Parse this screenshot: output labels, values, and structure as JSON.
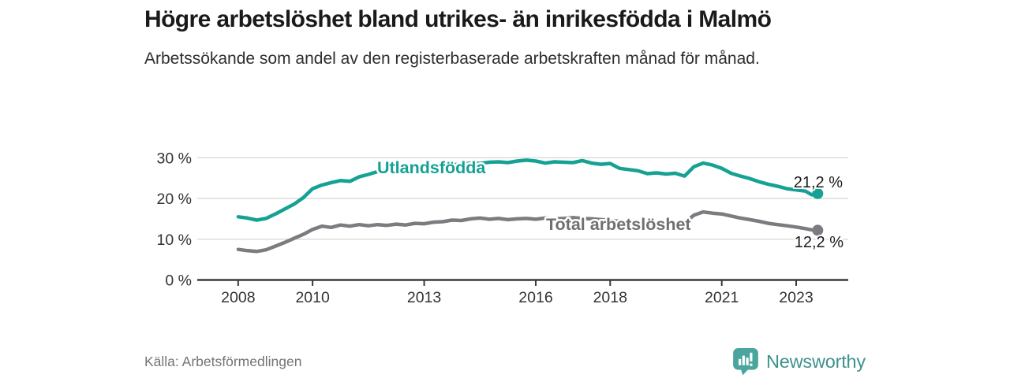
{
  "header": {
    "title": "Högre arbetslöshet bland utrikes- än inrikesfödda i Malmö",
    "subtitle": "Arbetssökande som andel av den registerbaserade arbetskraften månad för månad."
  },
  "footer": {
    "source": "Källa: Arbetsförmedlingen",
    "brand_name": "Newsworthy",
    "brand_icon": "newsworthy-speech-bubble-barchart-icon"
  },
  "colors": {
    "background": "#ffffff",
    "title_text": "#1a1a1a",
    "subtitle_text": "#2e2e2e",
    "grid": "#d9d9d9",
    "axis": "#3a3a3a",
    "axis_text": "#333333",
    "source_text": "#747474",
    "brand_teal_icon": "#4BA59E",
    "brand_teal_text": "#3E938C",
    "series_teal": "#15A193",
    "series_gray": "#7B7B80"
  },
  "chart_data": {
    "type": "line",
    "title": "Högre arbetslöshet bland utrikes- än inrikesfödda i Malmö",
    "subtitle": "Arbetssökande som andel av den registerbaserade arbetskraften månad för månad.",
    "xlabel": "",
    "ylabel": "%",
    "grid": true,
    "legend_position": "inline-labels-on-lines",
    "xlim": [
      2006.9,
      2024.4
    ],
    "ylim": [
      0,
      34.8
    ],
    "x": [
      2008.0,
      2008.25,
      2008.5,
      2008.75,
      2009.0,
      2009.25,
      2009.5,
      2009.75,
      2010.0,
      2010.25,
      2010.5,
      2010.75,
      2011.0,
      2011.25,
      2011.5,
      2011.75,
      2012.0,
      2012.25,
      2012.5,
      2012.75,
      2013.0,
      2013.25,
      2013.5,
      2013.75,
      2014.0,
      2014.25,
      2014.5,
      2014.75,
      2015.0,
      2015.25,
      2015.5,
      2015.75,
      2016.0,
      2016.25,
      2016.5,
      2016.75,
      2017.0,
      2017.25,
      2017.5,
      2017.75,
      2018.0,
      2018.25,
      2018.5,
      2018.75,
      2019.0,
      2019.25,
      2019.5,
      2019.75,
      2020.0,
      2020.25,
      2020.5,
      2020.75,
      2021.0,
      2021.25,
      2021.5,
      2021.75,
      2022.0,
      2022.25,
      2022.5,
      2022.75,
      2023.0,
      2023.25,
      2023.42,
      2023.58
    ],
    "series": [
      {
        "name": "Utlandsfödda",
        "color": "#15A193",
        "label_color": "#15A193",
        "end_label": "21,2 %",
        "end_value": 21.2,
        "values": [
          15.5,
          15.2,
          14.7,
          15.1,
          16.2,
          17.4,
          18.6,
          20.2,
          22.4,
          23.3,
          23.9,
          24.4,
          24.2,
          25.3,
          25.9,
          26.6,
          26.9,
          26.4,
          27.6,
          27.9,
          27.7,
          27.9,
          28.0,
          28.4,
          28.3,
          28.7,
          28.6,
          28.9,
          29.0,
          28.8,
          29.2,
          29.4,
          29.2,
          28.7,
          29.0,
          28.9,
          28.8,
          29.3,
          28.7,
          28.4,
          28.6,
          27.4,
          27.1,
          26.8,
          26.1,
          26.3,
          26.0,
          26.2,
          25.5,
          27.8,
          28.7,
          28.2,
          27.4,
          26.2,
          25.5,
          24.9,
          24.1,
          23.5,
          23.0,
          22.4,
          22.1,
          21.8,
          20.9,
          21.2
        ]
      },
      {
        "name": "Total arbetslöshet",
        "color": "#7B7B80",
        "label_color": "#6F6F74",
        "end_label": "12,2 %",
        "end_value": 12.2,
        "values": [
          7.5,
          7.2,
          7.0,
          7.4,
          8.3,
          9.2,
          10.2,
          11.2,
          12.4,
          13.2,
          12.9,
          13.5,
          13.2,
          13.6,
          13.3,
          13.6,
          13.4,
          13.7,
          13.5,
          13.9,
          13.8,
          14.2,
          14.3,
          14.7,
          14.6,
          15.0,
          15.2,
          14.9,
          15.1,
          14.8,
          15.0,
          15.1,
          14.9,
          15.2,
          15.0,
          15.1,
          15.3,
          15.1,
          15.0,
          14.8,
          14.6,
          14.4,
          14.3,
          14.1,
          13.9,
          13.9,
          13.8,
          13.9,
          14.1,
          15.9,
          16.7,
          16.4,
          16.2,
          15.7,
          15.2,
          14.8,
          14.4,
          13.9,
          13.6,
          13.3,
          13.0,
          12.6,
          12.3,
          12.2
        ]
      }
    ],
    "yticks": [
      {
        "value": 0,
        "label": "0 %"
      },
      {
        "value": 10,
        "label": "10 %"
      },
      {
        "value": 20,
        "label": "20 %"
      },
      {
        "value": 30,
        "label": "30 %"
      }
    ],
    "xticks": [
      {
        "value": 2008,
        "label": "2008"
      },
      {
        "value": 2010,
        "label": "2010"
      },
      {
        "value": 2013,
        "label": "2013"
      },
      {
        "value": 2016,
        "label": "2016"
      },
      {
        "value": 2018,
        "label": "2018"
      },
      {
        "value": 2021,
        "label": "2021"
      },
      {
        "value": 2023,
        "label": "2023"
      }
    ]
  }
}
